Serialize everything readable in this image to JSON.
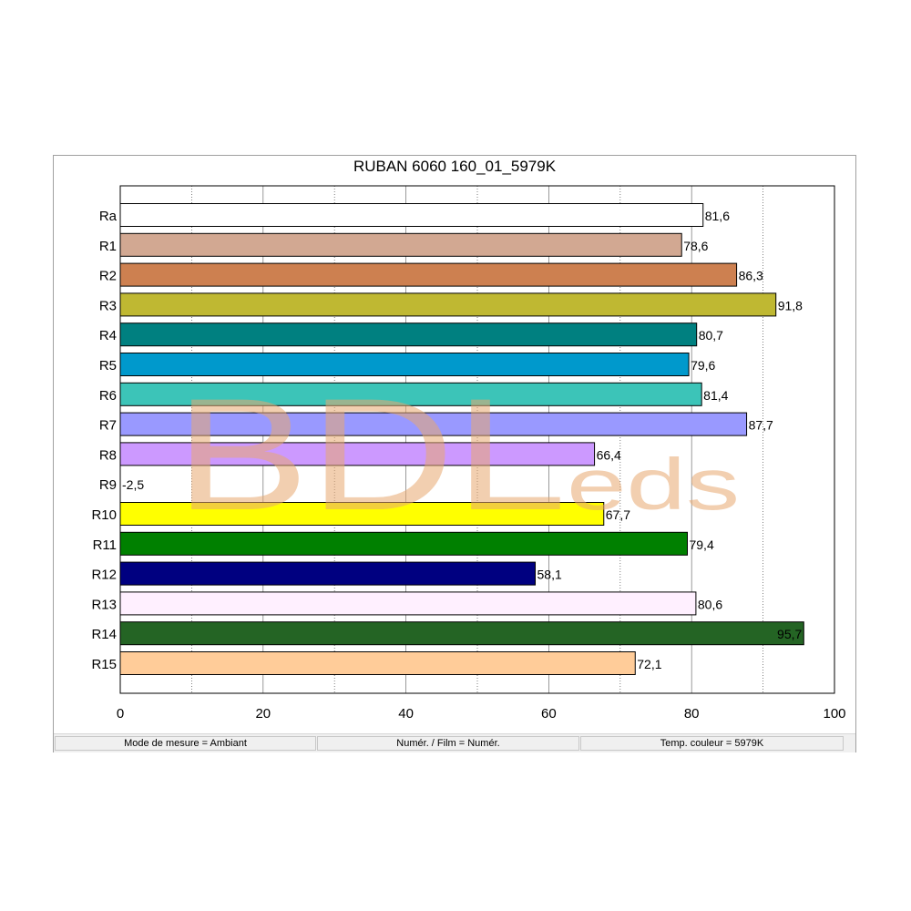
{
  "chart_data": {
    "type": "bar",
    "orientation": "horizontal",
    "title": "RUBAN 6060 160_01_5979K",
    "xlabel": "",
    "ylabel": "",
    "xlim": [
      0,
      100
    ],
    "x_ticks": [
      "0",
      "20",
      "40",
      "60",
      "80",
      "100"
    ],
    "grid": "vertical dotted every 10, solid every 20",
    "categories": [
      "Ra",
      "R1",
      "R2",
      "R3",
      "R4",
      "R5",
      "R6",
      "R7",
      "R8",
      "R9",
      "R10",
      "R11",
      "R12",
      "R13",
      "R14",
      "R15"
    ],
    "values": [
      81.6,
      78.6,
      86.3,
      91.8,
      80.7,
      79.6,
      81.4,
      87.7,
      66.4,
      -2.5,
      67.7,
      79.4,
      58.1,
      80.6,
      95.7,
      72.1
    ],
    "value_labels": [
      "81,6",
      "78,6",
      "86,3",
      "91,8",
      "80,7",
      "79,6",
      "81,4",
      "87,7",
      "66,4",
      "-2,5",
      "67,7",
      "79,4",
      "58,1",
      "80,6",
      "95,7",
      "72,1"
    ],
    "colors": [
      "#ffffff",
      "#d2a892",
      "#cd8050",
      "#bfb832",
      "#008080",
      "#0099cc",
      "#3cc4b8",
      "#9999ff",
      "#cc99ff",
      "#ffffff",
      "#ffff00",
      "#008000",
      "#000080",
      "#fff0ff",
      "#246424",
      "#ffcc99"
    ]
  },
  "status_bar": {
    "mode": "Mode de mesure = Ambiant",
    "film": "Numér. / Film = Numér.",
    "temp": "Temp. couleur = 5979K"
  },
  "watermark": {
    "text_main": "BDL",
    "text_small": "eds"
  }
}
